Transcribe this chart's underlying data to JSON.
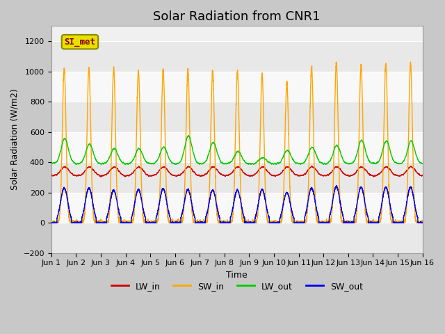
{
  "title": "Solar Radiation from CNR1",
  "xlabel": "Time",
  "ylabel": "Solar Radiation (W/m2)",
  "legend_label": "SI_met",
  "ylim": [
    -200,
    1300
  ],
  "yticks": [
    -200,
    0,
    200,
    400,
    600,
    800,
    1000,
    1200
  ],
  "xlim_days": [
    0,
    15
  ],
  "xtick_labels": [
    "Jun 1",
    "Jun 2",
    "Jun 3",
    "Jun 4",
    "Jun 5",
    "Jun 6",
    "Jun 7",
    "Jun 8",
    "Jun 9",
    "Jun 10",
    "Jun 11",
    "Jun 12",
    "Jun 13",
    "Jun 14",
    "Jun 15",
    "Jun 16"
  ],
  "colors": {
    "LW_in": "#cc0000",
    "SW_in": "#ffa500",
    "LW_out": "#00cc00",
    "SW_out": "#0000ee",
    "plot_bg": "#f0f0f0"
  },
  "line_width": 1.0,
  "grid_color": "#ffffff",
  "legend_box_facecolor": "#e8e000",
  "legend_box_edgecolor": "#888800",
  "legend_text_color": "#8b0000",
  "num_days": 15,
  "SW_in_peaks": [
    1020,
    1020,
    1020,
    1000,
    1010,
    1010,
    1000,
    1000,
    980,
    920,
    1030,
    1055,
    1045,
    1050,
    1050
  ],
  "SW_out_peaks": [
    230,
    230,
    215,
    220,
    225,
    220,
    215,
    215,
    220,
    200,
    230,
    240,
    235,
    235,
    235
  ],
  "LW_out_peaks": [
    555,
    520,
    490,
    490,
    500,
    575,
    530,
    470,
    430,
    480,
    500,
    510,
    545,
    540,
    540
  ],
  "LW_in_base": 310,
  "LW_in_amp": 60,
  "LW_out_base": 390,
  "title_fontsize": 13,
  "label_fontsize": 9,
  "tick_fontsize": 8
}
